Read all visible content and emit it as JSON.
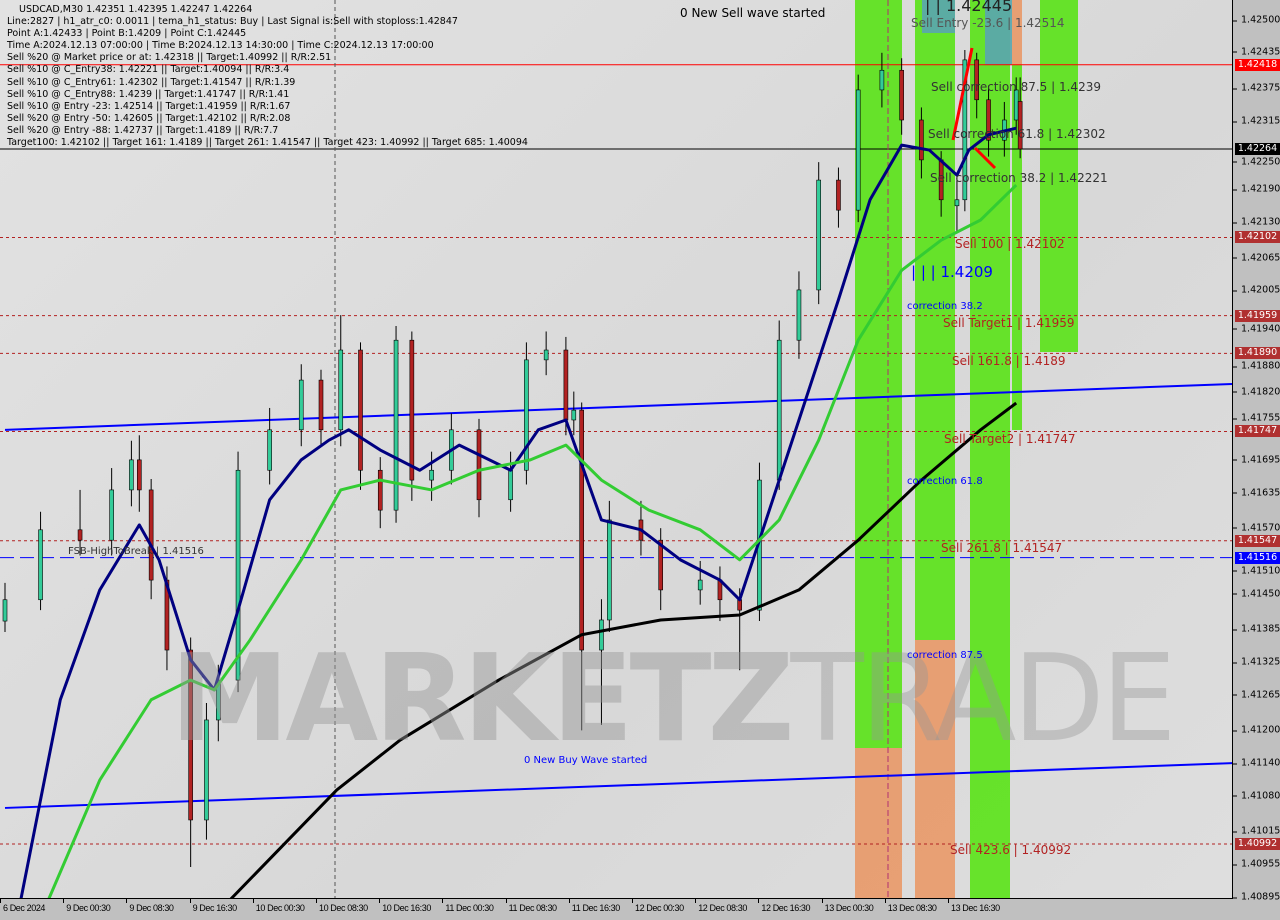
{
  "header": {
    "title": "USDCAD,M30  1.42351 1.42395 1.42247 1.42264",
    "lines": [
      "Line:2827 | h1_atr_c0: 0.0011 | tema_h1_status: Buy | Last Signal is:Sell with stoploss:1.42847",
      "Point A:1.42433 | Point B:1.4209 | Point C:1.42445",
      "Time A:2024.12.13 07:00:00 | Time B:2024.12.13 14:30:00 | Time C:2024.12.13 17:00:00",
      "Sell %20 @ Market price or at: 1.42318 || Target:1.40992 || R/R:2.51",
      "Sell %10 @ C_Entry38: 1.42221 || Target:1.40094 || R/R:3.4",
      "Sell %10 @ C_Entry61: 1.42302 || Target:1.41547 || R/R:1.39",
      "Sell %10 @ C_Entry88: 1.4239 || Target:1.41747 || R/R:1.41",
      "Sell %10 @ Entry -23: 1.42514 || Target:1.41959 || R/R:1.67",
      "Sell %20 @ Entry -50: 1.42605 || Target:1.42102 || R/R:2.08",
      "Sell %20 @ Entry -88: 1.42737 || Target:1.4189 || R/R:7.7",
      "Target100: 1.42102 || Target 161: 1.4189 || Target 261: 1.41547 || Target 423: 1.40992 || Target 685: 1.40094"
    ]
  },
  "watermark": {
    "part1": "MARKETZ",
    "part2": "TRADE"
  },
  "annotations": {
    "new_sell": "0 New Sell wave started",
    "point_c": "| | 1.42445",
    "sell_entry": "Sell Entry -23.6 | 1.42514",
    "corr875": "Sell correction 87.5 | 1.4239",
    "corr618": "Sell correction 61.8 | 1.42302",
    "corr382": "Sell correction 38.2 | 1.42221",
    "sell100": "Sell 100 | 1.42102",
    "point_b": "| | | 1.4209",
    "c382": "correction 38.2",
    "target1": "Sell Target1 | 1.41959",
    "sell1618": "Sell 161.8 | 1.4189",
    "target2": "Sell Target2 | 1.41747",
    "c618": "correction 61.8",
    "sell2618": "Sell 261.8 | 1.41547",
    "c875": "correction 87.5",
    "sell4236": "Sell 423.6 | 1.40992",
    "new_buy": "0 New Buy Wave started",
    "fsb": "FSB-HighToBreak | 1.41516"
  },
  "chart_data": {
    "type": "candlestick",
    "symbol": "USDCAD",
    "timeframe": "M30",
    "ylim": [
      1.40895,
      1.42545
    ],
    "grid": false,
    "y_ticks": [
      "1.42500",
      "1.42435",
      "1.42375",
      "1.42315",
      "1.42250",
      "1.42190",
      "1.42130",
      "1.42065",
      "1.42005",
      "1.41940",
      "1.41880",
      "1.41820",
      "1.41755",
      "1.41695",
      "1.41635",
      "1.41570",
      "1.41510",
      "1.41450",
      "1.41385",
      "1.41325",
      "1.41265",
      "1.41200",
      "1.41140",
      "1.41080",
      "1.41015",
      "1.40955",
      "1.40895"
    ],
    "x_ticks": [
      {
        "bar": 0,
        "label": "6 Dec 2024"
      },
      {
        "bar": 16,
        "label": "9 Dec 00:30"
      },
      {
        "bar": 32,
        "label": "9 Dec 08:30"
      },
      {
        "bar": 48,
        "label": "9 Dec 16:30"
      },
      {
        "bar": 64,
        "label": "10 Dec 00:30"
      },
      {
        "bar": 80,
        "label": "10 Dec 08:30"
      },
      {
        "bar": 96,
        "label": "10 Dec 16:30"
      },
      {
        "bar": 112,
        "label": "11 Dec 00:30"
      },
      {
        "bar": 128,
        "label": "11 Dec 08:30"
      },
      {
        "bar": 144,
        "label": "11 Dec 16:30"
      },
      {
        "bar": 160,
        "label": "12 Dec 00:30"
      },
      {
        "bar": 176,
        "label": "12 Dec 08:30"
      },
      {
        "bar": 192,
        "label": "12 Dec 16:30"
      },
      {
        "bar": 208,
        "label": "13 Dec 00:30"
      },
      {
        "bar": 224,
        "label": "13 Dec 08:30"
      },
      {
        "bar": 240,
        "label": "13 Dec 16:30"
      }
    ],
    "candles_bar_o_h_l_c": [
      [
        0,
        1.414,
        1.4147,
        1.4138,
        1.41439
      ],
      [
        9,
        1.41439,
        1.416,
        1.4142,
        1.41567
      ],
      [
        19,
        1.41567,
        1.4164,
        1.4152,
        1.41548
      ],
      [
        27,
        1.41548,
        1.4168,
        1.4152,
        1.4164
      ],
      [
        32,
        1.4164,
        1.4173,
        1.4161,
        1.41695
      ],
      [
        34,
        1.41695,
        1.4174,
        1.416,
        1.4164
      ],
      [
        37,
        1.4164,
        1.4166,
        1.4144,
        1.41475
      ],
      [
        41,
        1.41475,
        1.415,
        1.4131,
        1.41347
      ],
      [
        47,
        1.41347,
        1.4137,
        1.4095,
        1.41036
      ],
      [
        51,
        1.41036,
        1.4125,
        1.41,
        1.41219
      ],
      [
        54,
        1.41219,
        1.4132,
        1.4118,
        1.41292
      ],
      [
        59,
        1.41292,
        1.4171,
        1.4127,
        1.41676
      ],
      [
        67,
        1.41676,
        1.4179,
        1.4165,
        1.4175
      ],
      [
        75,
        1.4175,
        1.4187,
        1.4172,
        1.41841
      ],
      [
        80,
        1.41841,
        1.4186,
        1.4172,
        1.4175
      ],
      [
        85,
        1.4175,
        1.4196,
        1.4172,
        1.41896
      ],
      [
        90,
        1.41896,
        1.4191,
        1.4164,
        1.41676
      ],
      [
        95,
        1.41676,
        1.417,
        1.4157,
        1.41603
      ],
      [
        99,
        1.41603,
        1.4194,
        1.4158,
        1.41914
      ],
      [
        103,
        1.41914,
        1.4193,
        1.4162,
        1.41658
      ],
      [
        108,
        1.41658,
        1.4171,
        1.4162,
        1.41676
      ],
      [
        113,
        1.41676,
        1.4178,
        1.4165,
        1.4175
      ],
      [
        120,
        1.4175,
        1.4177,
        1.4159,
        1.41622
      ],
      [
        128,
        1.41622,
        1.4171,
        1.416,
        1.41676
      ],
      [
        132,
        1.41676,
        1.4191,
        1.4165,
        1.41878
      ],
      [
        137,
        1.41878,
        1.4193,
        1.4185,
        1.41896
      ],
      [
        142,
        1.41896,
        1.4192,
        1.4174,
        1.41768
      ],
      [
        144,
        1.41768,
        1.4182,
        1.4174,
        1.41786
      ],
      [
        146,
        1.41786,
        1.418,
        1.412,
        1.41347
      ],
      [
        151,
        1.41347,
        1.4144,
        1.4121,
        1.41402
      ],
      [
        153,
        1.41402,
        1.4162,
        1.4138,
        1.41585
      ],
      [
        161,
        1.41585,
        1.4162,
        1.4152,
        1.41548
      ],
      [
        166,
        1.41548,
        1.4157,
        1.4142,
        1.41457
      ],
      [
        176,
        1.41457,
        1.4151,
        1.4143,
        1.41475
      ],
      [
        181,
        1.41475,
        1.415,
        1.414,
        1.41439
      ],
      [
        186,
        1.41439,
        1.4146,
        1.4131,
        1.4142
      ],
      [
        191,
        1.4142,
        1.4169,
        1.414,
        1.41658
      ],
      [
        196,
        1.41658,
        1.4195,
        1.4164,
        1.41914
      ],
      [
        201,
        1.41914,
        1.4204,
        1.4188,
        1.42006
      ],
      [
        206,
        1.42006,
        1.4224,
        1.4198,
        1.42207
      ],
      [
        211,
        1.42207,
        1.4223,
        1.4212,
        1.42152
      ],
      [
        216,
        1.42152,
        1.424,
        1.4213,
        1.42372
      ],
      [
        222,
        1.42372,
        1.4244,
        1.4234,
        1.42408
      ],
      [
        227,
        1.42408,
        1.4243,
        1.4229,
        1.42317
      ],
      [
        232,
        1.42317,
        1.4234,
        1.4221,
        1.42244
      ],
      [
        237,
        1.42244,
        1.4226,
        1.4214,
        1.42171
      ],
      [
        241,
        1.4216,
        1.4222,
        1.4211,
        1.42171
      ],
      [
        243,
        1.42171,
        1.42445,
        1.4215,
        1.42427
      ],
      [
        246,
        1.42427,
        1.4244,
        1.4232,
        1.42354
      ],
      [
        249,
        1.42354,
        1.4238,
        1.4225,
        1.4228
      ],
      [
        253,
        1.4228,
        1.4235,
        1.4225,
        1.42317
      ],
      [
        256,
        1.42317,
        1.42395,
        1.4229,
        1.42372
      ],
      [
        257,
        1.42351,
        1.42395,
        1.42247,
        1.42264
      ]
    ],
    "indicator_lines": [
      {
        "color": "#000080",
        "points": [
          [
            4,
            1.4089
          ],
          [
            14,
            1.41256
          ],
          [
            24,
            1.41457
          ],
          [
            34,
            1.41576
          ],
          [
            39,
            1.41512
          ],
          [
            47,
            1.41329
          ],
          [
            53,
            1.41274
          ],
          [
            59,
            1.4142
          ],
          [
            67,
            1.41622
          ],
          [
            75,
            1.41695
          ],
          [
            82,
            1.41731
          ],
          [
            87,
            1.4175
          ],
          [
            95,
            1.41713
          ],
          [
            105,
            1.41676
          ],
          [
            115,
            1.41722
          ],
          [
            128,
            1.41676
          ],
          [
            135,
            1.4175
          ],
          [
            142,
            1.41768
          ],
          [
            151,
            1.41585
          ],
          [
            161,
            1.41567
          ],
          [
            171,
            1.41512
          ],
          [
            181,
            1.41475
          ],
          [
            186,
            1.41439
          ],
          [
            191,
            1.41548
          ],
          [
            201,
            1.41768
          ],
          [
            211,
            1.41988
          ],
          [
            219,
            1.42171
          ],
          [
            227,
            1.42271
          ],
          [
            234,
            1.42262
          ],
          [
            241,
            1.42216
          ],
          [
            244,
            1.42262
          ],
          [
            249,
            1.4229
          ],
          [
            256,
            1.42302
          ]
        ]
      },
      {
        "color": "#33cc33",
        "points": [
          [
            11,
            1.4089
          ],
          [
            24,
            1.41109
          ],
          [
            37,
            1.41256
          ],
          [
            47,
            1.41292
          ],
          [
            53,
            1.41274
          ],
          [
            62,
            1.41365
          ],
          [
            75,
            1.41512
          ],
          [
            85,
            1.4164
          ],
          [
            95,
            1.41658
          ],
          [
            108,
            1.4164
          ],
          [
            120,
            1.41676
          ],
          [
            133,
            1.41695
          ],
          [
            142,
            1.41722
          ],
          [
            151,
            1.41658
          ],
          [
            163,
            1.41603
          ],
          [
            176,
            1.41567
          ],
          [
            186,
            1.41512
          ],
          [
            196,
            1.41585
          ],
          [
            206,
            1.41731
          ],
          [
            216,
            1.41914
          ],
          [
            227,
            1.42042
          ],
          [
            237,
            1.42097
          ],
          [
            247,
            1.42134
          ],
          [
            256,
            1.42198
          ]
        ]
      },
      {
        "color": "#000000",
        "points": [
          [
            57,
            1.4089
          ],
          [
            84,
            1.41091
          ],
          [
            100,
            1.41182
          ],
          [
            125,
            1.41292
          ],
          [
            146,
            1.41375
          ],
          [
            166,
            1.41402
          ],
          [
            186,
            1.41411
          ],
          [
            201,
            1.41457
          ],
          [
            216,
            1.41548
          ],
          [
            232,
            1.41658
          ],
          [
            247,
            1.4175
          ],
          [
            256,
            1.41799
          ]
        ]
      }
    ],
    "trend_lines": [
      {
        "color": "#0000ff",
        "from": [
          0,
          1.4175
        ],
        "to": [
          311,
          1.41834
        ]
      },
      {
        "color": "#0000ff",
        "from": [
          0,
          1.41058
        ],
        "to": [
          311,
          1.4114
        ]
      }
    ],
    "levels": [
      {
        "price": "1.42418",
        "color": "#ff0000",
        "style": "solid"
      },
      {
        "price": "1.42264",
        "color": "#000000",
        "style": "solid"
      },
      {
        "price": "1.42102",
        "color": "#b22222",
        "style": "dashed"
      },
      {
        "price": "1.41959",
        "color": "#b22222",
        "style": "dashed"
      },
      {
        "price": "1.41890",
        "color": "#b22222",
        "style": "dashed"
      },
      {
        "price": "1.41747",
        "color": "#b22222",
        "style": "dashed"
      },
      {
        "price": "1.41547",
        "color": "#b22222",
        "style": "dashed"
      },
      {
        "price": "1.41516",
        "color": "#0000ff",
        "style": "dashed"
      },
      {
        "price": "1.40992",
        "color": "#b22222",
        "style": "dashed"
      }
    ]
  },
  "colors": {
    "bull": "#33cc99",
    "bear": "#b22222",
    "zone_green": "#5ce31b",
    "zone_orange": "#e89a6a",
    "zone_teal": "#5aa6ae",
    "annotation_red": "#b22222",
    "annotation_blue": "#0000ff"
  }
}
